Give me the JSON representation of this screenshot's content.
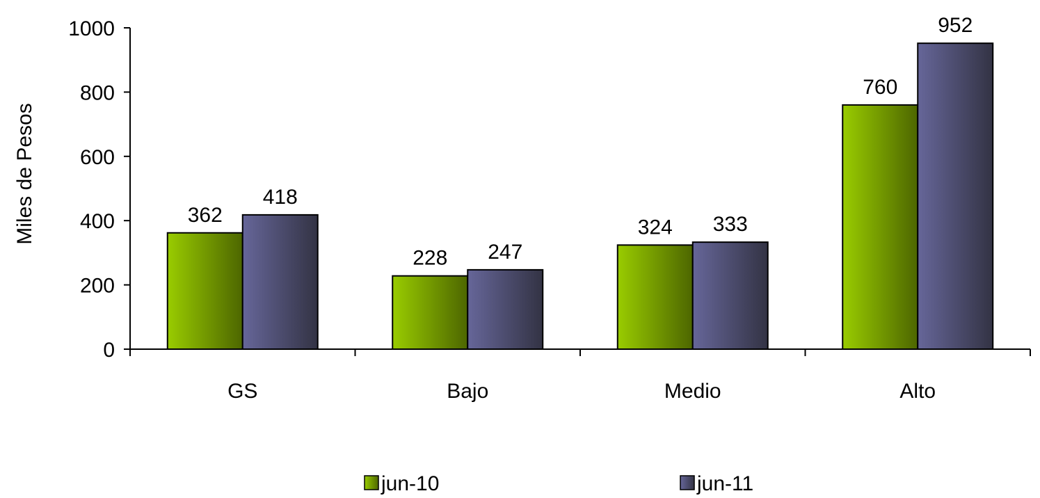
{
  "chart_data": {
    "type": "bar",
    "title": "",
    "xlabel": "",
    "ylabel": "Miles de Pesos",
    "categories": [
      "GS",
      "Bajo",
      "Medio",
      "Alto"
    ],
    "series": [
      {
        "name": "jun-10",
        "values": [
          362,
          228,
          324,
          760
        ],
        "colors": [
          "#99cc00",
          "#4d6600"
        ]
      },
      {
        "name": "jun-11",
        "values": [
          418,
          247,
          333,
          952
        ],
        "colors": [
          "#666699",
          "#333344"
        ]
      }
    ],
    "ylim": [
      0,
      1000
    ],
    "yticks": [
      0,
      200,
      400,
      600,
      800,
      1000
    ],
    "ytick_labels": [
      "0",
      "200",
      "400",
      "600",
      "800",
      "1000"
    ],
    "grid": false,
    "legend_position": "bottom"
  }
}
